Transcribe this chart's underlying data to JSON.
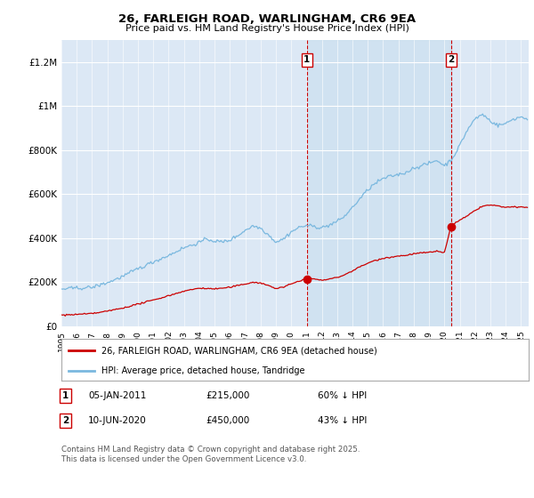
{
  "title": "26, FARLEIGH ROAD, WARLINGHAM, CR6 9EA",
  "subtitle": "Price paid vs. HM Land Registry's House Price Index (HPI)",
  "hpi_color": "#7ab8df",
  "price_color": "#cc0000",
  "background_plot": "#dce8f5",
  "background_shade": "#cfe0f0",
  "ylim": [
    0,
    1300000
  ],
  "yticks": [
    0,
    200000,
    400000,
    600000,
    800000,
    1000000,
    1200000
  ],
  "ytick_labels": [
    "£0",
    "£200K",
    "£400K",
    "£600K",
    "£800K",
    "£1M",
    "£1.2M"
  ],
  "transaction1_date": 2011.02,
  "transaction1_price": 215000,
  "transaction2_date": 2020.45,
  "transaction2_price": 450000,
  "legend_line1": "26, FARLEIGH ROAD, WARLINGHAM, CR6 9EA (detached house)",
  "legend_line2": "HPI: Average price, detached house, Tandridge",
  "footnote": "Contains HM Land Registry data © Crown copyright and database right 2025.\nThis data is licensed under the Open Government Licence v3.0.",
  "xmin": 1995.0,
  "xmax": 2025.5
}
